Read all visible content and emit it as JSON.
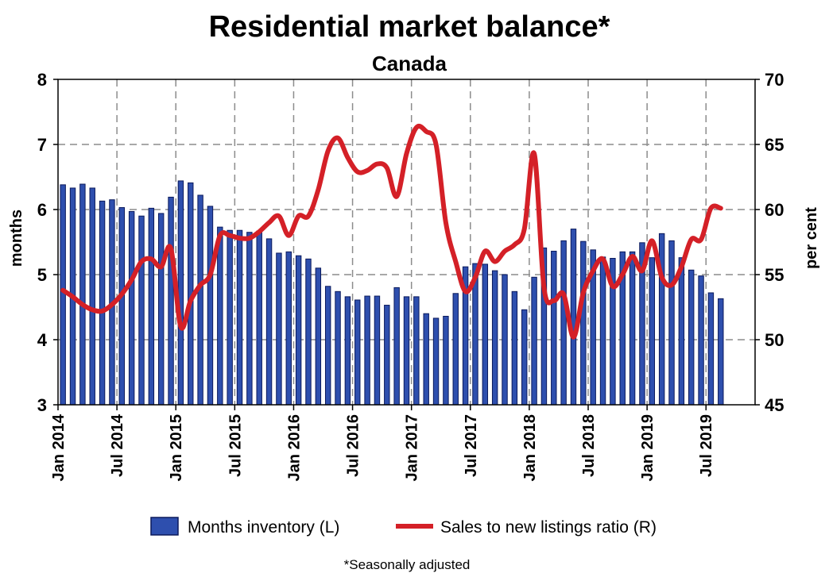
{
  "chart_data": {
    "type": "bar+line",
    "title": "Residential market balance*",
    "subtitle": "Canada",
    "ylabel_left": "months",
    "ylabel_right": "per cent",
    "ylim_left": [
      3,
      8
    ],
    "ylim_right": [
      45,
      70
    ],
    "yticks_left": [
      "3",
      "4",
      "5",
      "6",
      "7",
      "8"
    ],
    "yticks_right": [
      "45",
      "50",
      "55",
      "60",
      "65",
      "70"
    ],
    "xtick_labels": [
      "Jan 2014",
      "Jul 2014",
      "Jan 2015",
      "Jul 2015",
      "Jan 2016",
      "Jul 2016",
      "Jan 2017",
      "Jul 2017",
      "Jan 2018",
      "Jul 2018",
      "Jan 2019",
      "Jul 2019"
    ],
    "grid": true,
    "colors": {
      "bars": "#2e4fae",
      "bar_edge": "#0b1a5c",
      "line": "#d42027",
      "grid": "#8c8c8c"
    },
    "series": [
      {
        "name": "Months inventory (L)",
        "type": "bar",
        "values": [
          6.38,
          6.33,
          6.39,
          6.33,
          6.13,
          6.15,
          6.03,
          5.97,
          5.9,
          6.02,
          5.94,
          6.19,
          6.44,
          6.41,
          6.22,
          6.05,
          5.73,
          5.68,
          5.68,
          5.65,
          5.67,
          5.55,
          5.33,
          5.35,
          5.29,
          5.24,
          5.1,
          4.82,
          4.74,
          4.66,
          4.61,
          4.67,
          4.67,
          4.53,
          4.8,
          4.66,
          4.66,
          4.4,
          4.33,
          4.36,
          4.71,
          5.12,
          5.17,
          5.16,
          5.06,
          5.0,
          4.74,
          4.46,
          4.96,
          5.41,
          5.36,
          5.52,
          5.7,
          5.51,
          5.38,
          5.27,
          5.25,
          5.35,
          5.35,
          5.49,
          5.26,
          5.63,
          5.52,
          5.26,
          5.07,
          4.98,
          4.72,
          4.63
        ]
      },
      {
        "name": "Sales to new listings ratio (R)",
        "type": "line",
        "values": [
          53.8,
          53.3,
          52.7,
          52.3,
          52.2,
          52.7,
          53.5,
          54.6,
          56.0,
          56.2,
          55.6,
          57.0,
          51.0,
          53.0,
          54.2,
          55.0,
          58.0,
          58.0,
          57.8,
          57.8,
          58.3,
          59.0,
          59.5,
          58.0,
          59.5,
          59.5,
          61.5,
          64.5,
          65.5,
          64.0,
          62.9,
          63.0,
          63.5,
          63.2,
          61.0,
          64.3,
          66.3,
          66.0,
          65.0,
          59.0,
          56.0,
          53.7,
          54.8,
          56.8,
          56.0,
          56.8,
          57.3,
          58.5,
          64.3,
          54.0,
          53.0,
          53.5,
          50.2,
          53.6,
          55.3,
          56.2,
          54.1,
          55.0,
          56.4,
          55.3,
          57.6,
          54.8,
          54.2,
          55.6,
          57.7,
          57.7,
          60.1,
          60.1
        ]
      }
    ]
  },
  "legend": {
    "bars_label": "Months inventory (L)",
    "line_label": "Sales to new listings ratio (R)"
  },
  "footnote": "*Seasonally adjusted"
}
